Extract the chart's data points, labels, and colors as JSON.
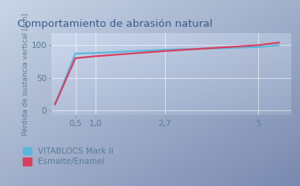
{
  "title": "Comportamiento de abrasión natural",
  "ylabel": "Pérdida de sustancia vertical [µm]",
  "x_values": [
    0,
    0.5,
    1.0,
    2.7,
    5,
    5.5
  ],
  "vitablocs_y": [
    10,
    87,
    88,
    93,
    97,
    100
  ],
  "enamel_y": [
    9,
    80,
    83,
    91,
    100,
    104
  ],
  "x_ticks": [
    0.5,
    1.0,
    2.7,
    5
  ],
  "x_tick_labels": [
    "0,5",
    "1,0",
    "2,7",
    "5"
  ],
  "y_ticks": [
    0,
    50,
    100
  ],
  "ylim": [
    -8,
    118
  ],
  "xlim": [
    -0.1,
    5.8
  ],
  "vitablocs_color": "#5ab8de",
  "enamel_color": "#d94060",
  "grid_color": "#c8d8ee",
  "bg_left_top": "#c2d2e4",
  "bg_right_bottom": "#8898c0",
  "plot_bg_left": "#c8d4e8",
  "plot_bg_right": "#9090b8",
  "legend_vitablocs": "VITABLOCS Mark II",
  "legend_enamel": "Esmalte/Enamel",
  "title_fontsize": 9.5,
  "label_fontsize": 6.5,
  "tick_fontsize": 7.5,
  "legend_fontsize": 7.5,
  "line_width": 1.6,
  "title_color": "#3a5a8c",
  "tick_color": "#5a7a9a",
  "ylabel_color": "#5a7a9a"
}
